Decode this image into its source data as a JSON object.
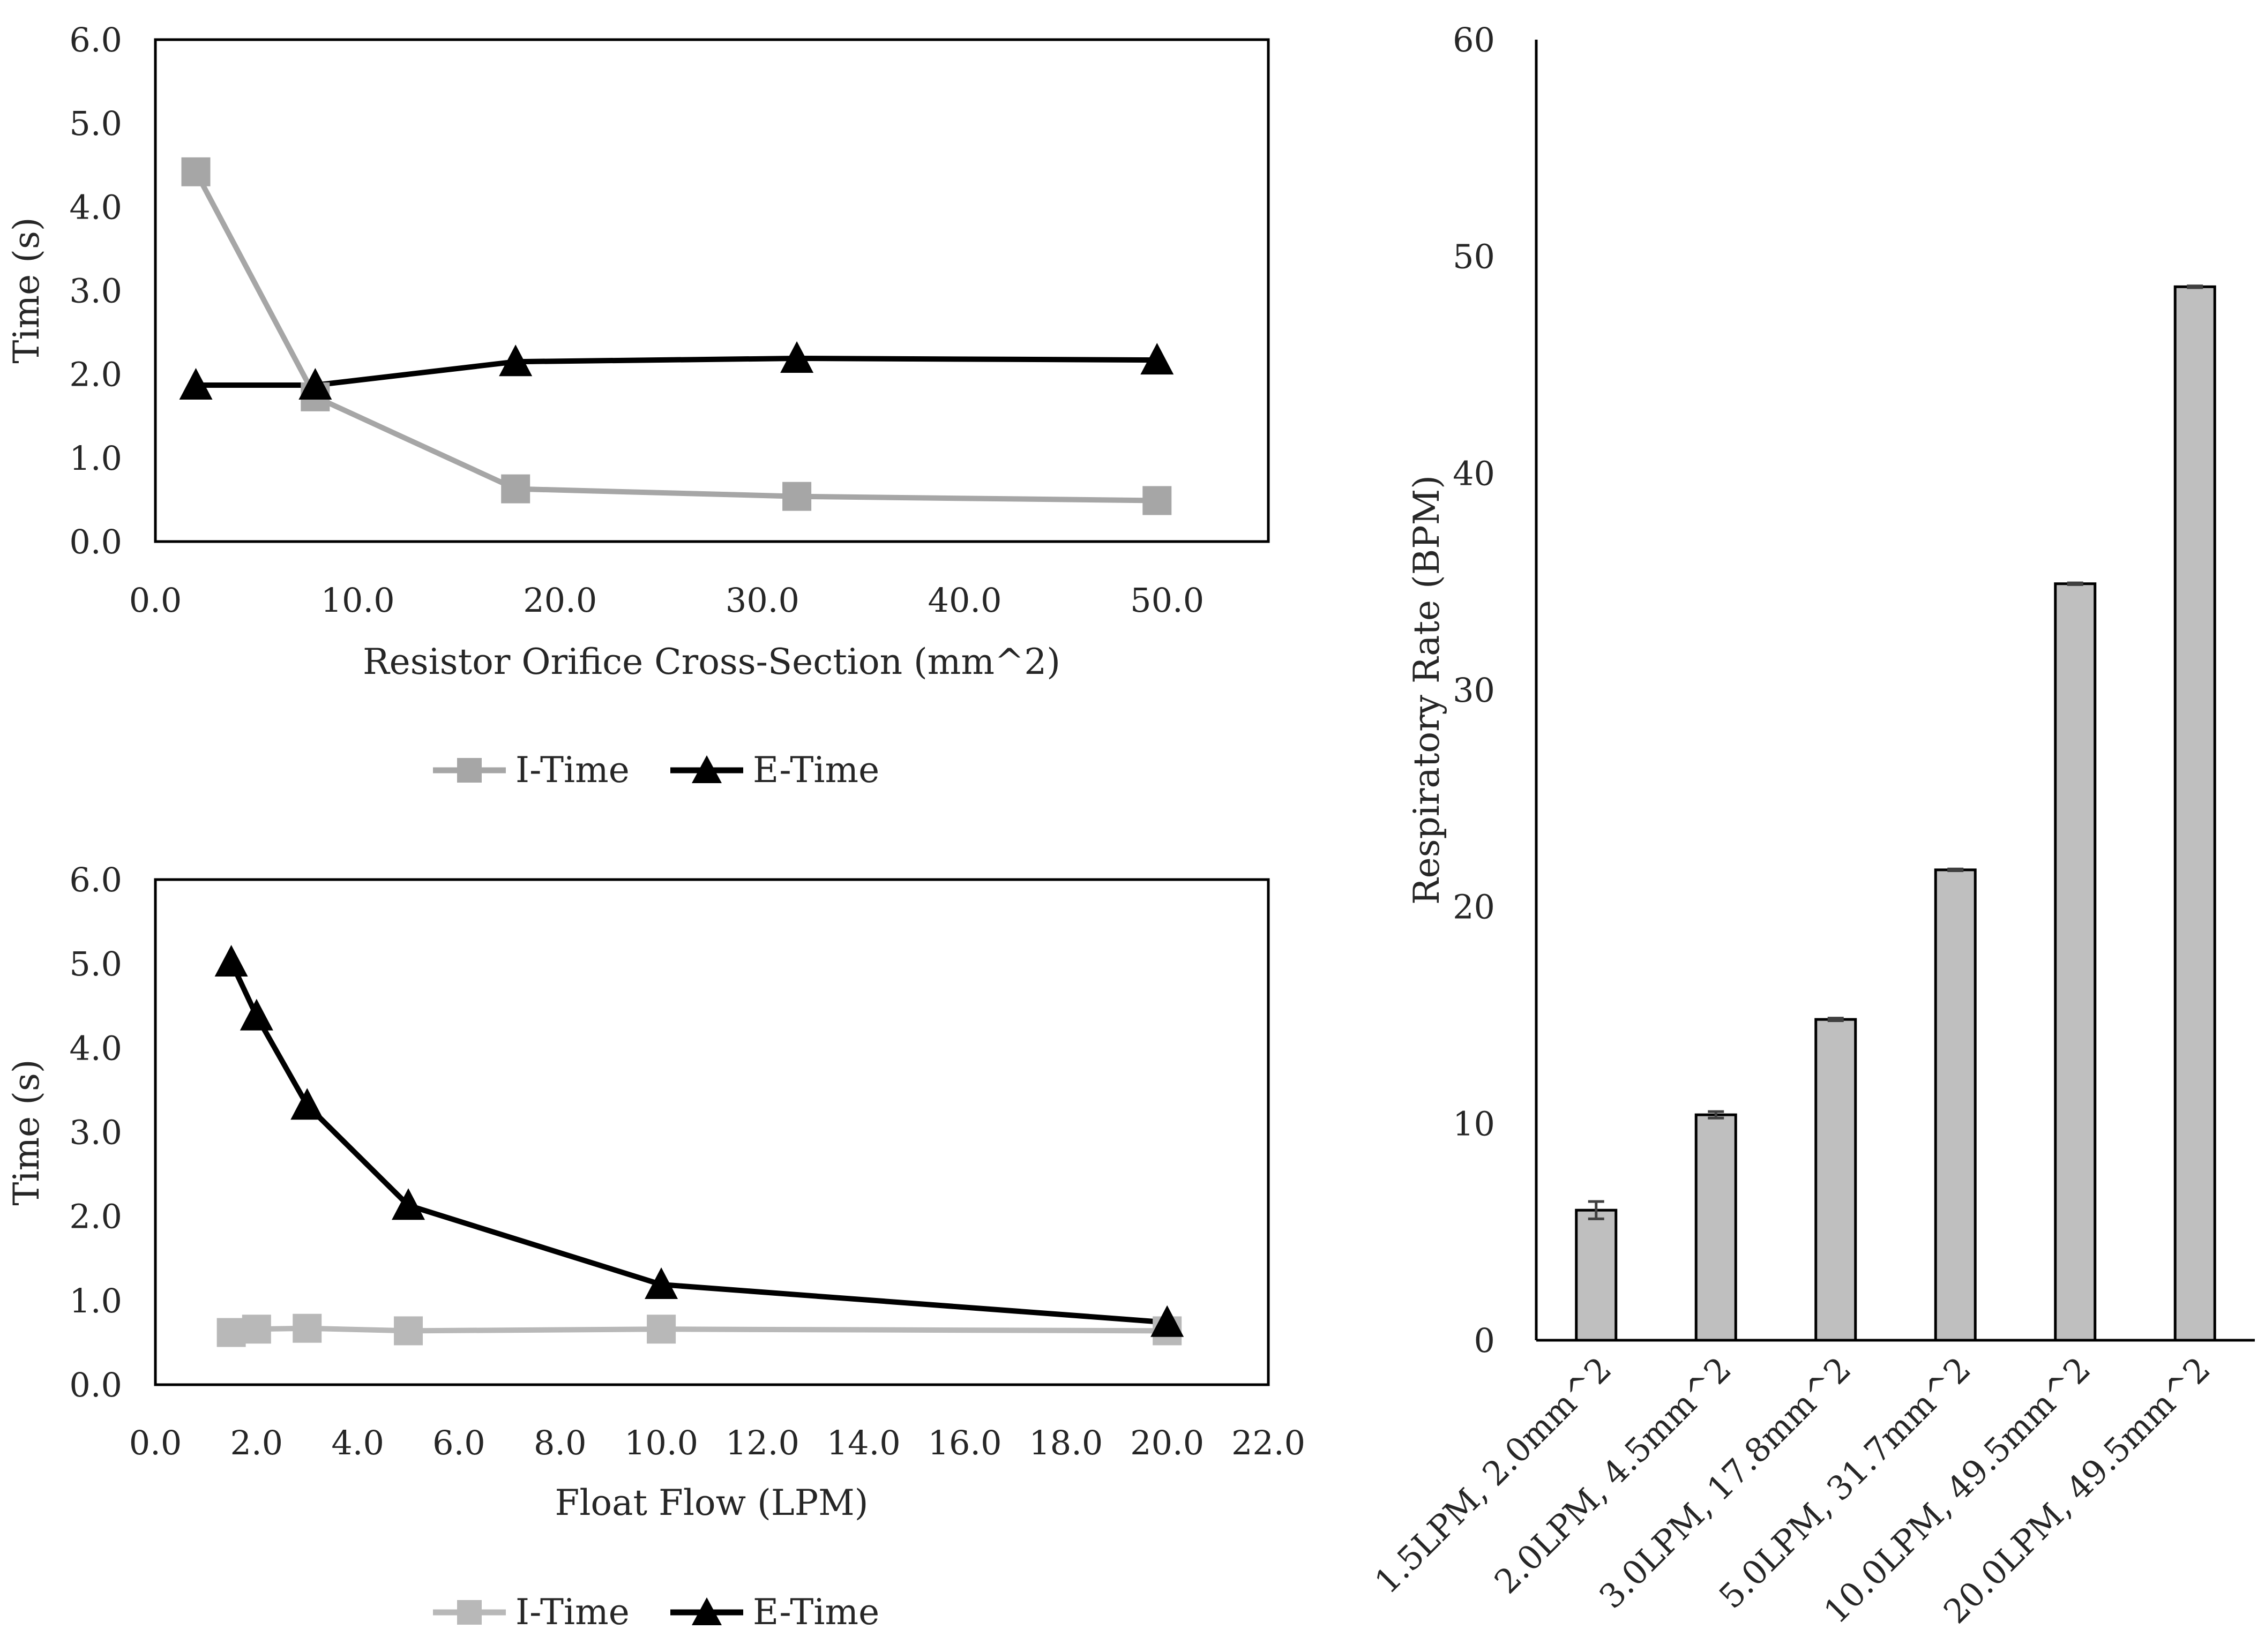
{
  "chart_data": [
    {
      "type": "line",
      "title": "",
      "xlabel": "Resistor Orifice Cross-Section (mm^2)",
      "ylabel": "Time (s)",
      "xlim": [
        0,
        55
      ],
      "ylim": [
        0,
        6
      ],
      "xticks": [
        0,
        10,
        20,
        30,
        40,
        50
      ],
      "xtick_labels": [
        "0.0",
        "10.0",
        "20.0",
        "30.0",
        "40.0",
        "50.0"
      ],
      "yticks": [
        0,
        1,
        2,
        3,
        4,
        5,
        6
      ],
      "ytick_labels": [
        "0.0",
        "1.0",
        "2.0",
        "3.0",
        "4.0",
        "5.0",
        "6.0"
      ],
      "legend_position": "bottom",
      "series": [
        {
          "name": "I-Time",
          "marker": "square",
          "color": "#a6a6a6",
          "x": [
            2.0,
            7.9,
            17.8,
            31.7,
            49.5
          ],
          "values": [
            4.42,
            1.73,
            0.63,
            0.54,
            0.49
          ]
        },
        {
          "name": "E-Time",
          "marker": "triangle",
          "color": "#000000",
          "x": [
            2.0,
            7.9,
            17.8,
            31.7,
            49.5
          ],
          "values": [
            1.87,
            1.87,
            2.15,
            2.19,
            2.17
          ]
        }
      ]
    },
    {
      "type": "line",
      "title": "",
      "xlabel": "Float Flow (LPM)",
      "ylabel": "Time (s)",
      "xlim": [
        0,
        22
      ],
      "ylim": [
        0,
        6
      ],
      "xticks": [
        0,
        2,
        4,
        6,
        8,
        10,
        12,
        14,
        16,
        18,
        20,
        22
      ],
      "xtick_labels": [
        "0.0",
        "2.0",
        "4.0",
        "6.0",
        "8.0",
        "10.0",
        "12.0",
        "14.0",
        "16.0",
        "18.0",
        "20.0",
        "22.0"
      ],
      "yticks": [
        0,
        1,
        2,
        3,
        4,
        5,
        6
      ],
      "ytick_labels": [
        "0.0",
        "1.0",
        "2.0",
        "3.0",
        "4.0",
        "5.0",
        "6.0"
      ],
      "legend_position": "bottom",
      "series": [
        {
          "name": "I-Time",
          "marker": "square",
          "color": "#b8b8b8",
          "x": [
            1.5,
            2.0,
            3.0,
            5.0,
            10.0,
            20.0
          ],
          "values": [
            0.62,
            0.66,
            0.67,
            0.64,
            0.66,
            0.64
          ]
        },
        {
          "name": "E-Time",
          "marker": "triangle",
          "color": "#000000",
          "x": [
            1.5,
            2.0,
            3.0,
            5.0,
            10.0,
            20.0
          ],
          "values": [
            5.02,
            4.38,
            3.32,
            2.13,
            1.19,
            0.74
          ]
        }
      ]
    },
    {
      "type": "bar",
      "title": "",
      "xlabel": "",
      "ylabel": "Respiratory Rate (BPM)",
      "ylim": [
        0,
        60
      ],
      "yticks": [
        0,
        10,
        20,
        30,
        40,
        50,
        60
      ],
      "ytick_labels": [
        "0",
        "10",
        "20",
        "30",
        "40",
        "50",
        "60"
      ],
      "categories": [
        "1.5LPM, 2.0mm^2",
        "2.0LPM, 4.5mm^2",
        "3.0LPM, 17.8mm^2",
        "5.0LPM, 31.7mm^2",
        "10.0LPM, 49.5mm^2",
        "20.0LPM, 49.5mm^2"
      ],
      "values": [
        6.0,
        10.4,
        14.8,
        21.7,
        34.9,
        48.6
      ],
      "errors": [
        0.4,
        0.15,
        0.06,
        0.04,
        0.04,
        0.04
      ],
      "bar_color": "#bfbfbf"
    }
  ]
}
